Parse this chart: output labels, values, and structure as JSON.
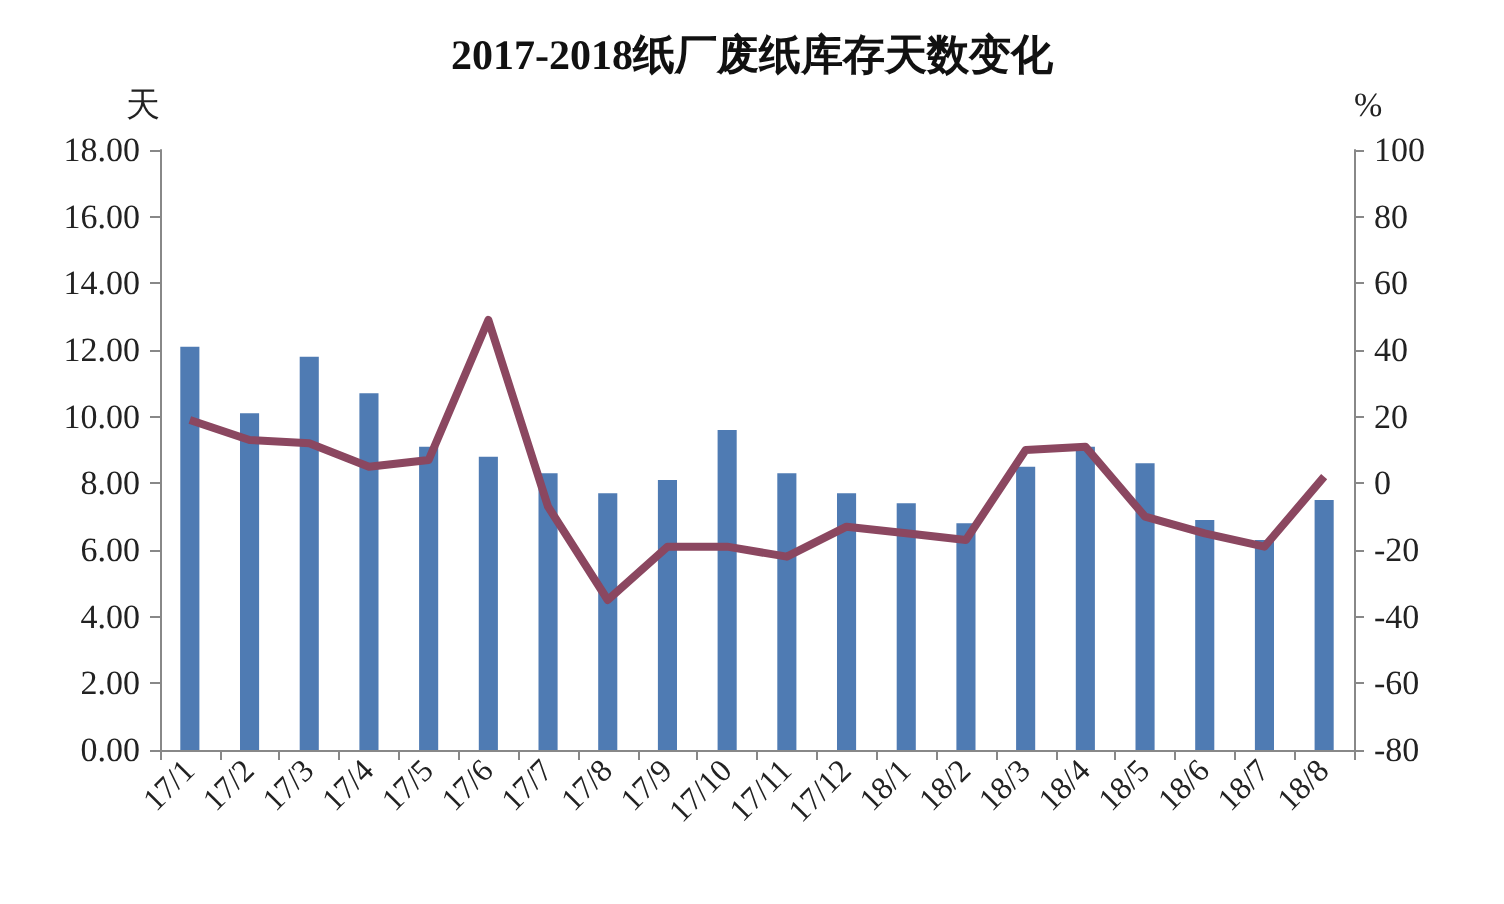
{
  "chart_data": {
    "type": "bar",
    "title": "2017-2018纸厂废纸库存天数变化",
    "ylabel": "天",
    "y2label": "%",
    "categories": [
      "17/1",
      "17/2",
      "17/3",
      "17/4",
      "17/5",
      "17/6",
      "17/7",
      "17/8",
      "17/9",
      "17/10",
      "17/11",
      "17/12",
      "18/1",
      "18/2",
      "18/3",
      "18/4",
      "18/5",
      "18/6",
      "18/7",
      "18/8"
    ],
    "series": [
      {
        "color": "#4f7bb3",
        "values": [
          12.1,
          10.1,
          11.8,
          10.7,
          9.1,
          8.8,
          8.3,
          7.7,
          8.1,
          9.6,
          8.3,
          7.7,
          7.4,
          6.8,
          8.5,
          9.1,
          8.6,
          6.9,
          6.3,
          7.5
        ]
      },
      {
        "type": "line",
        "axis": "y2",
        "color": "#8b4760",
        "values": [
          19,
          13,
          12,
          5,
          7,
          49,
          -7,
          -35,
          -19,
          -19,
          -22,
          -13,
          -15,
          -17,
          10,
          11,
          -10,
          -15,
          -19,
          2
        ]
      }
    ],
    "ylim": [
      0,
      18
    ],
    "yticks": [
      {
        "value": 0,
        "label": "0.00"
      },
      {
        "value": 2,
        "label": "2.00"
      },
      {
        "value": 4,
        "label": "4.00"
      },
      {
        "value": 6,
        "label": "6.00"
      },
      {
        "value": 8,
        "label": "8.00"
      },
      {
        "value": 10,
        "label": "10.00"
      },
      {
        "value": 12,
        "label": "12.00"
      },
      {
        "value": 14,
        "label": "14.00"
      },
      {
        "value": 16,
        "label": "16.00"
      },
      {
        "value": 18,
        "label": "18.00"
      }
    ],
    "y2lim": [
      -80,
      100
    ],
    "y2ticks": [
      -80,
      -60,
      -40,
      -20,
      0,
      20,
      40,
      60,
      80,
      100
    ],
    "grid": false,
    "marker": "none"
  }
}
